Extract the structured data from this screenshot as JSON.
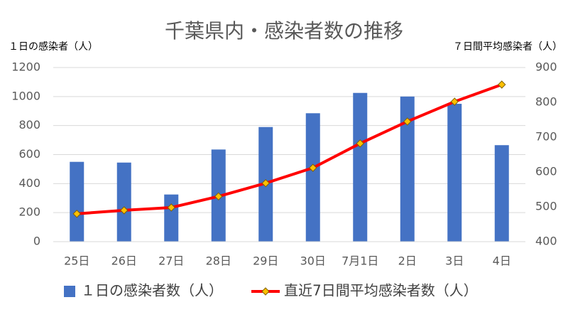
{
  "chart_data": {
    "type": "combo",
    "title": "千葉県内・感染者数の推移",
    "y_label": "１日の感染者（人）",
    "y2_label": "７日間平均感染者（人）",
    "categories": [
      "25日",
      "26日",
      "27日",
      "28日",
      "29日",
      "30日",
      "7月1日",
      "2日",
      "3日",
      "4日"
    ],
    "series": [
      {
        "name": "１日の感染者数（人）",
        "type": "bar",
        "color": "#4472c4",
        "values": [
          550,
          545,
          325,
          635,
          790,
          885,
          1025,
          1000,
          950,
          665
        ]
      },
      {
        "name": "直近7日間平均感染者数（人）",
        "type": "line",
        "axis": "y2",
        "color": "#ff0000",
        "marker_color": "#ffc000",
        "values": [
          480,
          490,
          498,
          530,
          568,
          612,
          682,
          745,
          802,
          851
        ]
      }
    ],
    "ylim": [
      0,
      1200
    ],
    "yticks": [
      0,
      200,
      400,
      600,
      800,
      1000,
      1200
    ],
    "y2lim": [
      400,
      900
    ],
    "y2ticks": [
      400,
      500,
      600,
      700,
      800,
      900
    ],
    "grid": true,
    "legend": "bottom"
  }
}
